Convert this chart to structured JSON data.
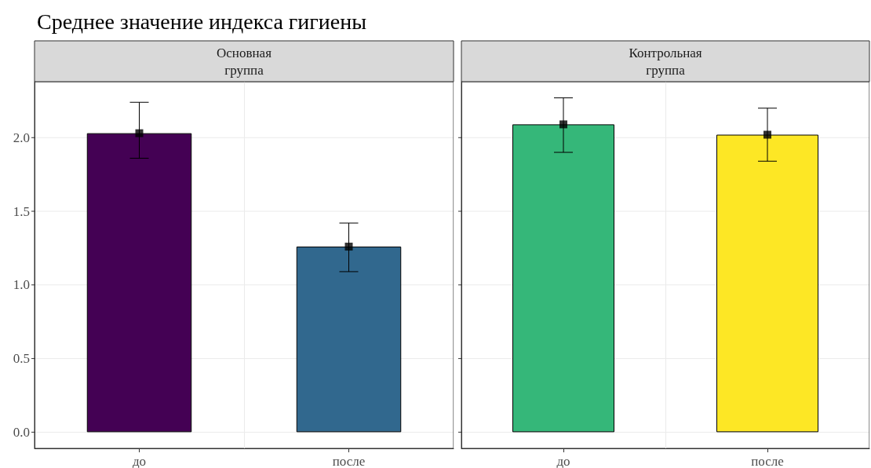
{
  "chart_data": [
    {
      "type": "bar",
      "title": "Среднее значение индекса гигиены",
      "subtitle": "Основная\nгруппа",
      "categories": [
        "до",
        "после"
      ],
      "series": [
        {
          "type": "bar",
          "colors": [
            "#440154",
            "#31688e"
          ],
          "values": [
            2.03,
            1.26
          ],
          "errors": [
            [
              1.86,
              2.24
            ],
            [
              1.09,
              1.42
            ]
          ]
        },
        {
          "type": "scatter",
          "x": [
            "до",
            "после"
          ],
          "values": [
            2.03,
            1.26
          ],
          "color": "#000000",
          "marker": "square"
        }
      ],
      "ylim": [
        -0.11,
        2.38
      ],
      "yticks": [
        {
          "value": 0,
          "label": "0.0"
        },
        0.5,
        {
          "value": 1,
          "label": "1.0"
        },
        1.5,
        {
          "value": 2,
          "label": "2.0"
        }
      ],
      "grid": true
    },
    {
      "type": "bar",
      "subtitle": "Контрольная\nгруппа",
      "categories": [
        "до",
        "после"
      ],
      "series": [
        {
          "type": "bar",
          "colors": [
            "#35b779",
            "#fde725"
          ],
          "values": [
            2.09,
            2.02
          ],
          "errors": [
            [
              1.9,
              2.27
            ],
            [
              1.84,
              2.2
            ]
          ]
        },
        {
          "type": "scatter",
          "x": [
            "до",
            "после"
          ],
          "values": [
            2.09,
            2.02
          ],
          "color": "#000000",
          "marker": "square"
        }
      ],
      "ylim": [
        -0.11,
        2.38
      ],
      "yticks": [
        0,
        0.5,
        1,
        1.5,
        2
      ],
      "grid": true,
      "tick_labels": "x"
    }
  ]
}
